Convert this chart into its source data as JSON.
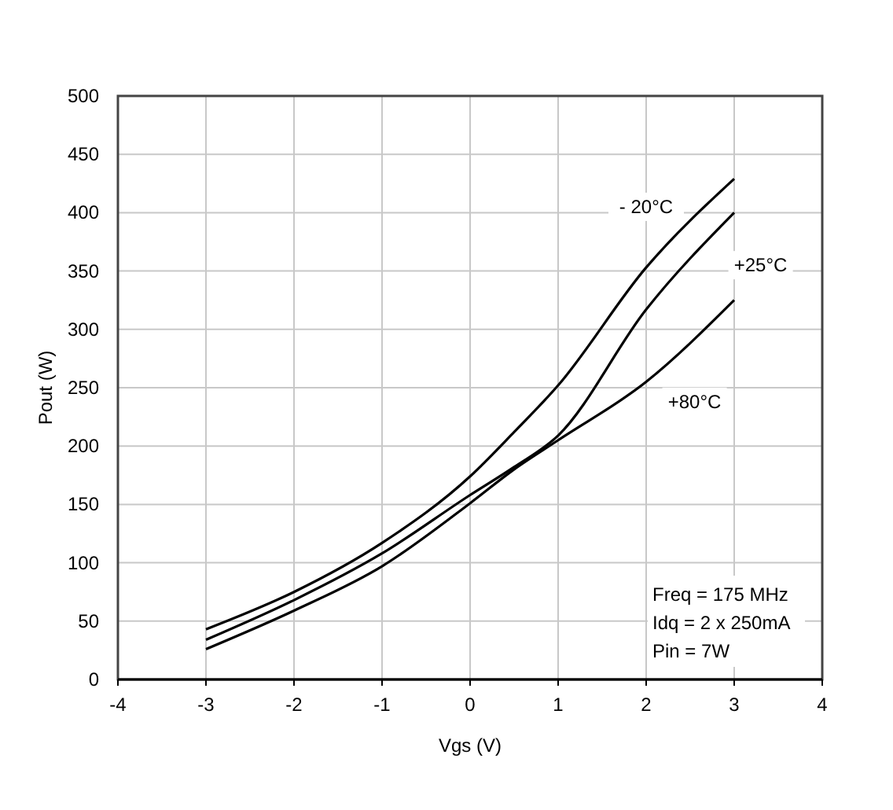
{
  "chart_data": {
    "type": "line",
    "xlabel": "Vgs (V)",
    "ylabel": "Pout (W)",
    "xlim": [
      -4,
      4
    ],
    "ylim": [
      0,
      500
    ],
    "xticks": [
      -4,
      -3,
      -2,
      -1,
      0,
      1,
      2,
      3,
      4
    ],
    "yticks": [
      0,
      50,
      100,
      150,
      200,
      250,
      300,
      350,
      400,
      450,
      500
    ],
    "grid": true,
    "line_style": "solid",
    "marker": "none",
    "series": [
      {
        "name": "- 20°C",
        "color": "#000000",
        "x": [
          -3,
          -2,
          -1,
          0,
          0.5,
          1,
          2,
          3
        ],
        "values": [
          43,
          75,
          117,
          174,
          212,
          252,
          353,
          429
        ]
      },
      {
        "name": "+25°C",
        "color": "#000000",
        "x": [
          -3,
          -2,
          -1,
          0,
          0.5,
          1,
          2,
          3
        ],
        "values": [
          34,
          68,
          108,
          158,
          182,
          209,
          317,
          400
        ]
      },
      {
        "name": "+80°C",
        "color": "#000000",
        "x": [
          -3,
          -2,
          -1,
          0,
          0.5,
          1,
          2,
          3
        ],
        "values": [
          26,
          59,
          97,
          151,
          180,
          205,
          255,
          325
        ]
      }
    ],
    "annotations": [
      "Freq = 175 MHz",
      "Idq = 2 x 250mA",
      "Pin = 7W"
    ]
  }
}
